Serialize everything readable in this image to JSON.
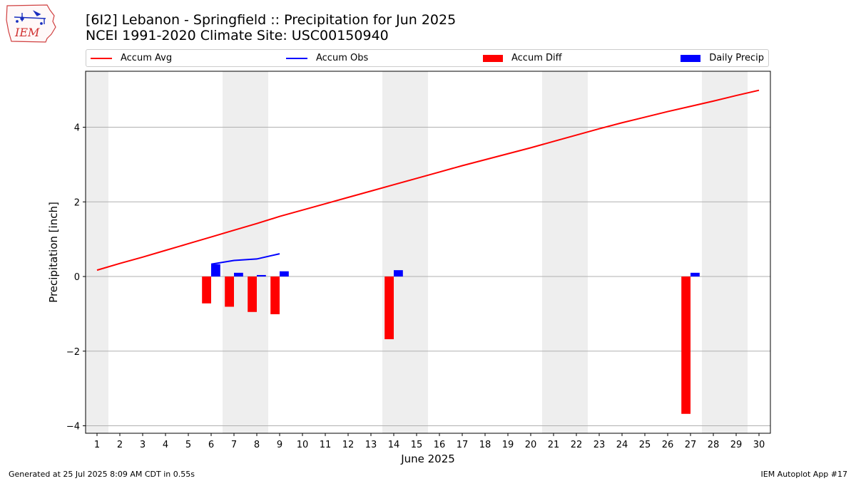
{
  "header": {
    "title_line1": "[6I2] Lebanon - Springfield :: Precipitation for Jun 2025",
    "title_line2": "NCEI 1991-2020 Climate Site: USC00150940",
    "logo_text": "IEM"
  },
  "legend": [
    {
      "label": "Accum Avg",
      "color": "#ff0000",
      "kind": "line"
    },
    {
      "label": "Accum Obs",
      "color": "#0000ff",
      "kind": "line"
    },
    {
      "label": "Accum Diff",
      "color": "#ff0000",
      "kind": "bar"
    },
    {
      "label": "Daily Precip",
      "color": "#0000ff",
      "kind": "bar"
    }
  ],
  "chart_data": {
    "type": "bar",
    "xlabel": "June 2025",
    "ylabel": "Precipitation [inch]",
    "xlim": [
      0.5,
      30.5
    ],
    "ylim": [
      -4.2,
      5.5
    ],
    "yticks": [
      -4,
      -2,
      0,
      2,
      4
    ],
    "ytick_labels": [
      "−4",
      "−2",
      "0",
      "2",
      "4"
    ],
    "days": [
      1,
      2,
      3,
      4,
      5,
      6,
      7,
      8,
      9,
      10,
      11,
      12,
      13,
      14,
      15,
      16,
      17,
      18,
      19,
      20,
      21,
      22,
      23,
      24,
      25,
      26,
      27,
      28,
      29,
      30
    ],
    "weekend_shading": [
      [
        0.5,
        1.5
      ],
      [
        6.5,
        8.5
      ],
      [
        13.5,
        15.5
      ],
      [
        20.5,
        22.5
      ],
      [
        27.5,
        29.5
      ]
    ],
    "grid": "horizontal",
    "series": [
      {
        "name": "Accum Avg",
        "kind": "line",
        "color": "#ff0000",
        "x": [
          1,
          2,
          3,
          4,
          5,
          6,
          7,
          8,
          9,
          10,
          11,
          12,
          13,
          14,
          15,
          16,
          17,
          18,
          19,
          20,
          21,
          22,
          23,
          24,
          25,
          26,
          27,
          28,
          29,
          30
        ],
        "values": [
          0.17,
          0.35,
          0.52,
          0.7,
          0.88,
          1.06,
          1.24,
          1.42,
          1.61,
          1.78,
          1.95,
          2.12,
          2.29,
          2.46,
          2.63,
          2.8,
          2.97,
          3.13,
          3.29,
          3.45,
          3.62,
          3.79,
          3.96,
          4.12,
          4.27,
          4.42,
          4.56,
          4.7,
          4.85,
          4.99
        ]
      },
      {
        "name": "Accum Obs",
        "kind": "line",
        "color": "#0000ff",
        "x": [
          6,
          7,
          8,
          9
        ],
        "values": [
          0.33,
          0.43,
          0.47,
          0.61
        ]
      },
      {
        "name": "Accum Diff",
        "kind": "bar",
        "color": "#ff0000",
        "x": [
          6,
          7,
          8,
          9,
          14,
          27
        ],
        "values": [
          -0.72,
          -0.81,
          -0.95,
          -1.01,
          -1.68,
          -3.68
        ]
      },
      {
        "name": "Daily Precip",
        "kind": "bar",
        "color": "#0000ff",
        "x": [
          6,
          7,
          8,
          9,
          14,
          27
        ],
        "values": [
          0.33,
          0.1,
          0.04,
          0.14,
          0.17,
          0.1
        ]
      }
    ]
  },
  "footer": {
    "generated": "Generated at 25 Jul 2025 8:09 AM CDT in 0.55s",
    "app": "IEM Autoplot App #17"
  }
}
